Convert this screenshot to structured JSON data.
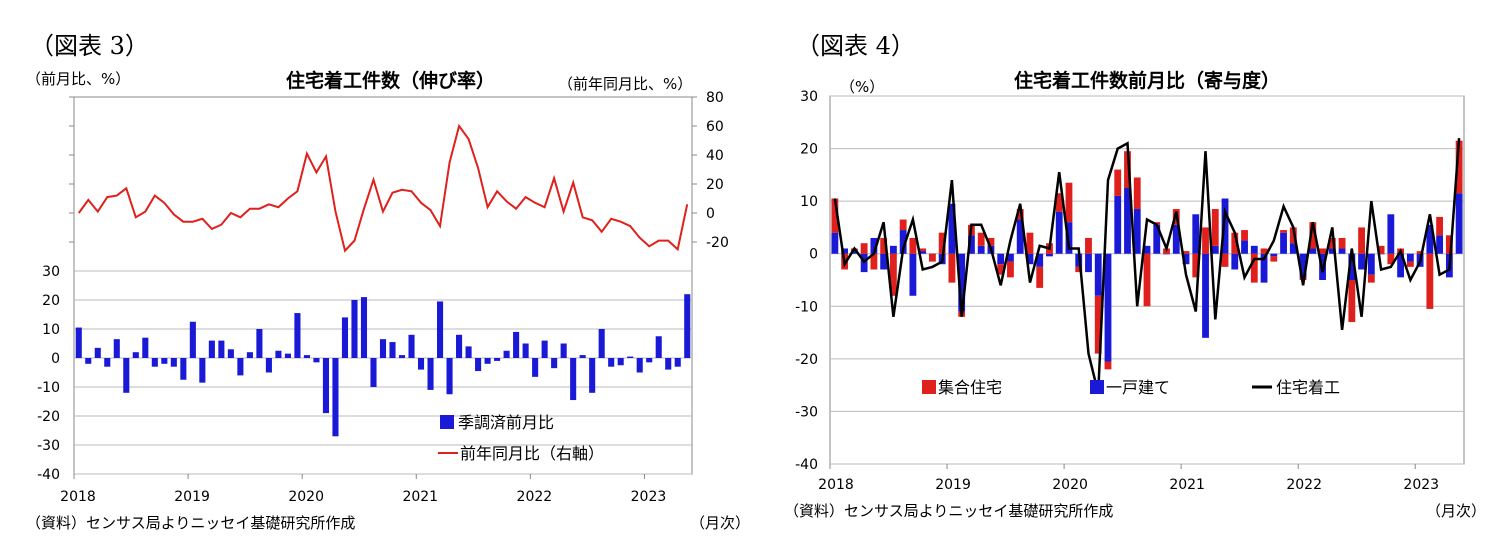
{
  "figures": [
    {
      "fig_label": "（図表 3）",
      "left_unit": "（前月比、%）",
      "right_unit": "（前年同月比、%）",
      "source": "（資料）センサス局よりニッセイ基礎研究所作成",
      "month_label": "（月次）"
    },
    {
      "fig_label": "（図表 4）",
      "unit": "（%）",
      "source": "（資料）センサス局よりニッセイ基礎研究所作成",
      "month_label": "（月次）"
    }
  ],
  "chart_data": [
    {
      "type": "bar+line",
      "title": "住宅着工件数（伸び率）",
      "x_tick_labels": [
        "2018",
        "2019",
        "2020",
        "2021",
        "2022",
        "2023"
      ],
      "period": {
        "start": "2018-01",
        "end": "2023-05",
        "frequency": "monthly"
      },
      "left_axis": {
        "ticks": [
          30,
          20,
          10,
          0,
          -10,
          -20,
          -30,
          -40
        ],
        "ylim": [
          -40,
          30
        ]
      },
      "right_axis": {
        "ticks": [
          80,
          60,
          40,
          20,
          0,
          -20
        ],
        "ylim": [
          -20,
          80
        ]
      },
      "series": [
        {
          "name": "季調済前月比",
          "kind": "bar",
          "axis": "left",
          "color": "#1a1ad6",
          "values": [
            10.5,
            -2.0,
            3.5,
            -3.0,
            6.5,
            -12.0,
            2.0,
            7.0,
            -3.0,
            -2.0,
            -3.0,
            -7.5,
            12.5,
            -8.5,
            6.0,
            6.0,
            3.0,
            -6.0,
            2.0,
            10.0,
            -5.0,
            2.5,
            1.5,
            15.5,
            1.0,
            -1.5,
            -19.0,
            -27.0,
            14.0,
            20.0,
            21.0,
            -10.0,
            6.5,
            5.5,
            1.0,
            8.0,
            -4.0,
            -11.0,
            19.5,
            -12.5,
            8.0,
            4.0,
            -4.5,
            -2.0,
            -1.0,
            2.5,
            9.0,
            5.0,
            -6.5,
            6.0,
            -3.5,
            5.0,
            -14.5,
            1.0,
            -12.0,
            10.0,
            -3.0,
            -2.5,
            0.5,
            -5.0,
            -1.5,
            7.5,
            -4.0,
            -3.0,
            22.0
          ]
        },
        {
          "name": "前年同月比（右軸）",
          "kind": "line",
          "axis": "right",
          "color": "#e0201c",
          "values": [
            0,
            9,
            1,
            11,
            12,
            17,
            -3,
            1,
            12,
            7,
            -1,
            -6,
            -6,
            -4,
            -11,
            -8,
            0,
            -3,
            3,
            3,
            6,
            4,
            10,
            15,
            41,
            28,
            39,
            1,
            -26,
            -19,
            3,
            23,
            1,
            14,
            16,
            15,
            7,
            2,
            -9,
            35,
            60,
            51,
            31,
            4,
            15,
            8,
            3,
            11,
            7,
            4,
            24,
            1,
            21,
            -3,
            -5,
            -13,
            -4,
            -6,
            -9,
            -17,
            -23,
            -19,
            -19,
            -25,
            6
          ]
        }
      ],
      "legend_position": "bottom-right",
      "grid": true
    },
    {
      "type": "stacked-bar+line",
      "title": "住宅着工件数前月比（寄与度）",
      "x_tick_labels": [
        "2018",
        "2019",
        "2020",
        "2021",
        "2022",
        "2023"
      ],
      "period": {
        "start": "2018-01",
        "end": "2023-05",
        "frequency": "monthly"
      },
      "y_axis": {
        "ticks": [
          30,
          20,
          10,
          0,
          -10,
          -20,
          -30,
          -40
        ],
        "ylim": [
          -40,
          30
        ]
      },
      "series": [
        {
          "name": "集合住宅",
          "kind": "bar",
          "color": "#e0201c",
          "values": [
            6.5,
            -3.0,
            0.5,
            2.0,
            -3.0,
            3.0,
            -8.0,
            2.0,
            3.0,
            0.5,
            -1.5,
            4.0,
            -5.5,
            -1.0,
            2.0,
            2.5,
            1.5,
            -2.0,
            -3.0,
            2.0,
            4.0,
            -4.0,
            2.0,
            3.5,
            7.5,
            -1.0,
            3.0,
            -11.0,
            -1.5,
            5.0,
            7.0,
            6.0,
            -10.0,
            0.5,
            1.0,
            3.0,
            0.5,
            -4.5,
            5.0,
            7.0,
            -2.5,
            4.0,
            2.0,
            -5.5,
            1.0,
            -1.0,
            0.5,
            3.0,
            -0.5,
            5.0,
            1.0,
            2.0,
            2.0,
            -8.0,
            5.0,
            -1.5,
            1.5,
            -2.0,
            1.0,
            -1.0,
            0.5,
            -10.5,
            3.5,
            3.5,
            10.0
          ]
        },
        {
          "name": "一戸建て",
          "kind": "bar",
          "color": "#1a1ad6",
          "values": [
            4.0,
            1.0,
            0.5,
            -3.5,
            3.0,
            -3.0,
            1.5,
            4.5,
            -8.0,
            0.5,
            0.0,
            -2.0,
            9.5,
            -11.0,
            3.5,
            1.5,
            1.5,
            -2.0,
            -1.5,
            6.5,
            -2.0,
            -2.5,
            -0.5,
            8.0,
            6.0,
            -2.5,
            -3.5,
            -8.0,
            -20.5,
            11.0,
            12.5,
            8.5,
            1.5,
            5.5,
            0.0,
            5.5,
            -2.0,
            7.5,
            -16.0,
            1.5,
            10.5,
            -3.0,
            2.5,
            1.5,
            -5.5,
            -0.5,
            4.0,
            2.0,
            -4.5,
            1.0,
            -5.0,
            1.0,
            1.0,
            -5.0,
            -3.0,
            -4.0,
            0.0,
            7.5,
            -4.5,
            -1.5,
            -2.5,
            5.5,
            3.5,
            -4.5,
            11.5
          ]
        },
        {
          "name": "住宅着工",
          "kind": "line",
          "color": "#000000",
          "values": [
            10.5,
            -2.0,
            1.0,
            -1.5,
            0.0,
            6.0,
            -12.0,
            1.0,
            6.5,
            -3.0,
            -2.5,
            -1.5,
            14.0,
            -12.0,
            5.5,
            5.5,
            1.0,
            -6.0,
            2.5,
            9.5,
            -5.5,
            1.5,
            1.0,
            15.5,
            1.0,
            1.0,
            -19.0,
            -26.5,
            14.0,
            20.0,
            21.0,
            -10.0,
            6.5,
            5.5,
            1.0,
            8.0,
            -4.0,
            -11.0,
            19.5,
            -12.5,
            8.0,
            4.0,
            -4.5,
            -1.0,
            -1.0,
            2.5,
            9.0,
            5.0,
            -6.0,
            6.0,
            -3.5,
            5.0,
            -14.5,
            1.0,
            -12.0,
            10.0,
            -3.0,
            -2.5,
            0.5,
            -5.0,
            -1.5,
            7.5,
            -4.0,
            -3.0,
            22.0
          ]
        }
      ],
      "legend_position": "bottom-left",
      "grid": true
    }
  ]
}
